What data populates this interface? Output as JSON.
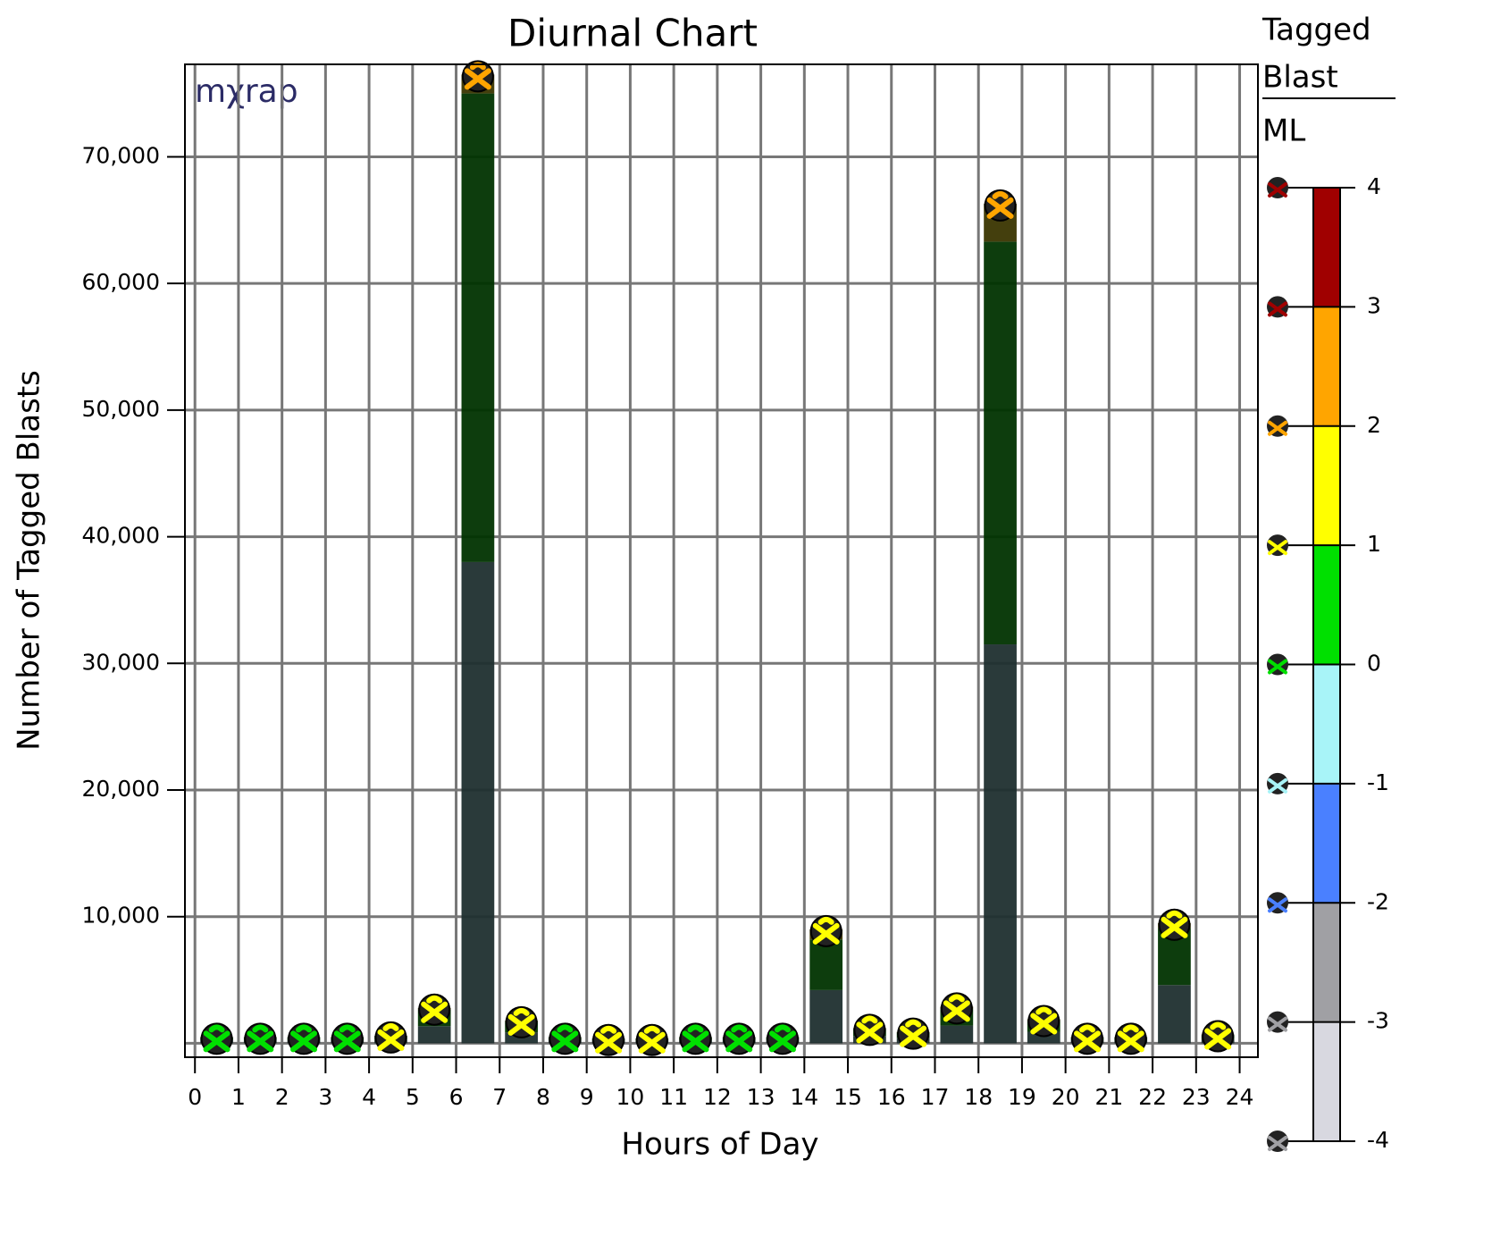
{
  "chart_data": {
    "type": "histogram",
    "title": "Diurnal Chart",
    "x_label": "Hours of Day",
    "y_label": "Number of Tagged Blasts",
    "watermark": "mχrap",
    "bins": [
      0,
      1,
      2,
      3,
      4,
      5,
      6,
      7,
      8,
      9,
      10,
      11,
      12,
      13,
      14,
      15,
      16,
      17,
      18,
      19,
      20,
      21,
      22,
      23,
      24
    ],
    "series": [
      {
        "color": "#1f2f2f",
        "values": [
          240,
          240,
          240,
          240,
          290,
          1350,
          38000,
          870,
          240,
          190,
          190,
          240,
          240,
          240,
          4200,
          580,
          430,
          1400,
          31500,
          910,
          240,
          240,
          4600,
          330
        ]
      },
      {
        "color": "#003300",
        "values": [
          230,
          230,
          230,
          230,
          270,
          1300,
          37000,
          830,
          230,
          180,
          180,
          230,
          230,
          230,
          4000,
          550,
          410,
          1300,
          31800,
          860,
          230,
          230,
          4500,
          320
        ]
      },
      {
        "color": "#3a3500",
        "values": [
          30,
          30,
          30,
          30,
          40,
          150,
          1500,
          100,
          30,
          30,
          30,
          30,
          30,
          30,
          800,
          70,
          60,
          200,
          3000,
          130,
          30,
          30,
          400,
          50
        ]
      }
    ],
    "marker_colors": [
      "#00e000",
      "#00e000",
      "#00e000",
      "#00e000",
      "#ffff00",
      "#ffff00",
      "#ffa500",
      "#ffff00",
      "#00e000",
      "#ffff00",
      "#ffff00",
      "#00e000",
      "#00e000",
      "#00e000",
      "#ffff00",
      "#ffff00",
      "#ffff00",
      "#ffff00",
      "#ffa500",
      "#ffff00",
      "#ffff00",
      "#ffff00",
      "#ffff00",
      "#ffff00"
    ],
    "xlim": [
      -0.23,
      24.42
    ],
    "xticks": [
      0,
      1,
      2,
      3,
      4,
      5,
      6,
      7,
      8,
      9,
      10,
      11,
      12,
      13,
      14,
      15,
      16,
      17,
      18,
      19,
      20,
      21,
      22,
      23,
      24
    ],
    "ylim": [
      -1100,
      77300
    ],
    "yticks": [
      {
        "value": 10000,
        "label": "10,000"
      },
      {
        "value": 20000,
        "label": "20,000"
      },
      {
        "value": 30000,
        "label": "30,000"
      },
      {
        "value": 40000,
        "label": "40,000"
      },
      {
        "value": 50000,
        "label": "50,000"
      },
      {
        "value": 60000,
        "label": "60,000"
      },
      {
        "value": 70000,
        "label": "70,000"
      }
    ],
    "grid": true,
    "colorbar": {
      "title": [
        "Tagged",
        "Blast"
      ],
      "label": "ML",
      "lim": [
        -4,
        4
      ],
      "ticks": [
        4,
        3,
        2,
        1,
        0,
        -1,
        -2,
        -3,
        -4
      ],
      "colors": [
        "#d8d8e0",
        "#a0a0a4",
        "#4a80ff",
        "#a8f4f8",
        "#00e000",
        "#ffff00",
        "#ffa500",
        "#a00000"
      ],
      "icon_colors": [
        "#a00000",
        "#a00000",
        "#ffa500",
        "#ffff00",
        "#00e000",
        "#a8f4f8",
        "#4a80ff",
        "#a0a0a4",
        "#a0a0a4"
      ]
    }
  }
}
